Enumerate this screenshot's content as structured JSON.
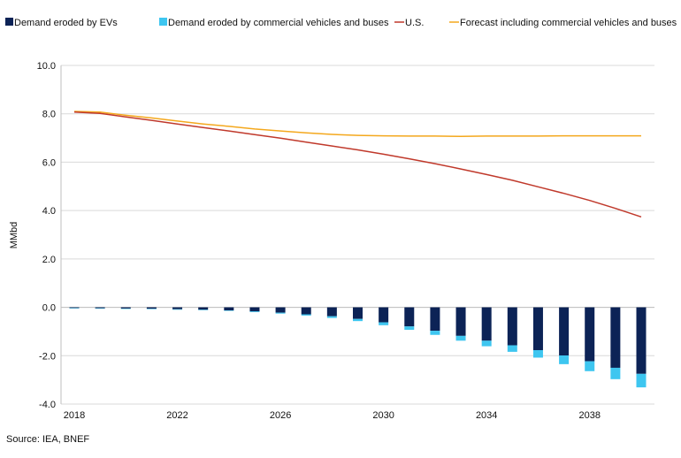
{
  "chart_data": {
    "type": "bar",
    "title": "",
    "xlabel": "",
    "ylabel": "MMbd",
    "ylim": [
      -4.0,
      10.0
    ],
    "yticks": [
      "10.0",
      "8.0",
      "6.0",
      "4.0",
      "2.0",
      "0.0",
      "-2.0",
      "-4.0"
    ],
    "ytick_values": [
      10,
      8,
      6,
      4,
      2,
      0,
      -2,
      -4
    ],
    "xticks": [
      "2018",
      "2022",
      "2026",
      "2030",
      "2034",
      "2038"
    ],
    "xtick_values": [
      2018,
      2022,
      2026,
      2030,
      2034,
      2038
    ],
    "x": [
      2018,
      2019,
      2020,
      2021,
      2022,
      2023,
      2024,
      2025,
      2026,
      2027,
      2028,
      2029,
      2030,
      2031,
      2032,
      2033,
      2034,
      2035,
      2036,
      2037,
      2038,
      2039,
      2040
    ],
    "grid": true,
    "legend_position": "top",
    "source": "Source: IEA, BNEF",
    "colors": {
      "ev": "#0c2356",
      "commercial": "#3ec6f0",
      "us": "#c0392b",
      "forecast": "#f4a81d"
    },
    "series": [
      {
        "name": "Demand eroded by EVs",
        "kind": "bar",
        "values": [
          -0.03,
          -0.04,
          -0.05,
          -0.06,
          -0.08,
          -0.1,
          -0.13,
          -0.17,
          -0.22,
          -0.29,
          -0.37,
          -0.48,
          -0.62,
          -0.79,
          -0.97,
          -1.18,
          -1.38,
          -1.57,
          -1.77,
          -1.99,
          -2.23,
          -2.5,
          -2.75
        ]
      },
      {
        "name": "Demand eroded by commercial vehicles and buses",
        "kind": "bar",
        "values": [
          -0.01,
          -0.01,
          -0.01,
          -0.01,
          -0.02,
          -0.02,
          -0.02,
          -0.03,
          -0.04,
          -0.05,
          -0.07,
          -0.09,
          -0.12,
          -0.14,
          -0.17,
          -0.2,
          -0.23,
          -0.27,
          -0.31,
          -0.36,
          -0.41,
          -0.47,
          -0.56
        ]
      },
      {
        "name": "U.S.",
        "kind": "line",
        "values": [
          8.07,
          8.02,
          7.87,
          7.73,
          7.58,
          7.43,
          7.29,
          7.14,
          6.99,
          6.83,
          6.67,
          6.51,
          6.33,
          6.14,
          5.94,
          5.72,
          5.49,
          5.25,
          4.98,
          4.71,
          4.42,
          4.09,
          3.74
        ]
      },
      {
        "name": "Forecast including commercial vehicles and buses",
        "kind": "line",
        "values": [
          8.1,
          8.07,
          7.94,
          7.83,
          7.7,
          7.58,
          7.48,
          7.37,
          7.29,
          7.21,
          7.15,
          7.11,
          7.09,
          7.08,
          7.08,
          7.07,
          7.08,
          7.08,
          7.08,
          7.09,
          7.09,
          7.09,
          7.09
        ]
      }
    ]
  }
}
